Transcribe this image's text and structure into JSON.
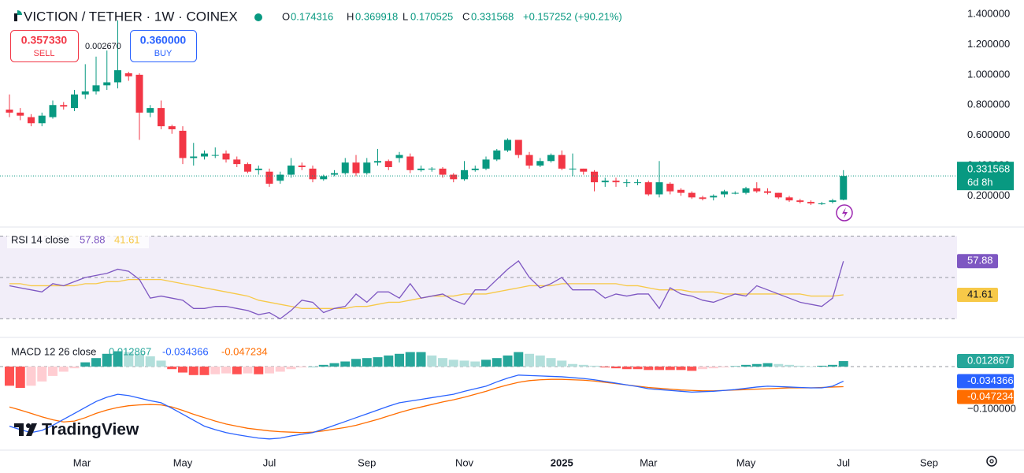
{
  "chart_data": {
    "type": "candlestick",
    "title": "VICTION / TETHER · 1W · COINEX",
    "ohlc_labels": [
      "O",
      "H",
      "L",
      "C"
    ],
    "change_label": "+0.157252 (+90.21%)",
    "sell": {
      "value": 0.35733,
      "label": "0.357330"
    },
    "sell_text": "SELL",
    "buy": {
      "value": 0.36,
      "label": "0.360000"
    },
    "buy_text": "BUY",
    "annotation": "0.002670",
    "countdown": "6d 8h",
    "brand": "TradingView",
    "up_color": "#089981",
    "down_color": "#f23645",
    "grid": false,
    "candles": {
      "open": [
        0.77,
        0.75,
        0.72,
        0.68,
        0.72,
        0.8,
        0.78,
        0.87,
        0.89,
        0.93,
        0.95,
        1.01,
        1.0,
        0.75,
        0.78,
        0.66,
        0.63,
        0.45,
        0.46,
        0.47,
        0.48,
        0.44,
        0.41,
        0.37,
        0.36,
        0.3,
        0.34,
        0.4,
        0.38,
        0.31,
        0.34,
        0.35,
        0.42,
        0.35,
        0.42,
        0.43,
        0.45,
        0.46,
        0.37,
        0.38,
        0.38,
        0.34,
        0.31,
        0.37,
        0.38,
        0.44,
        0.5,
        0.57,
        0.47,
        0.4,
        0.43,
        0.47,
        0.38,
        0.38,
        0.36,
        0.29,
        0.3,
        0.29,
        0.29,
        0.29,
        0.21,
        0.28,
        0.24,
        0.22,
        0.19,
        0.19,
        0.21,
        0.22,
        0.22,
        0.25,
        0.23,
        0.22,
        0.19,
        0.17,
        0.16,
        0.15,
        0.16,
        0.174316
      ],
      "high": [
        0.87,
        0.78,
        0.74,
        0.75,
        0.83,
        0.82,
        0.9,
        1.07,
        1.12,
        1.16,
        1.36,
        1.02,
        1.01,
        0.8,
        0.83,
        0.67,
        0.66,
        0.55,
        0.5,
        0.52,
        0.5,
        0.46,
        0.42,
        0.4,
        0.38,
        0.36,
        0.45,
        0.42,
        0.4,
        0.34,
        0.37,
        0.45,
        0.47,
        0.45,
        0.51,
        0.44,
        0.49,
        0.48,
        0.4,
        0.39,
        0.39,
        0.35,
        0.43,
        0.4,
        0.46,
        0.51,
        0.58,
        0.56,
        0.49,
        0.45,
        0.48,
        0.5,
        0.48,
        0.38,
        0.37,
        0.32,
        0.32,
        0.31,
        0.31,
        0.3,
        0.43,
        0.29,
        0.25,
        0.23,
        0.2,
        0.21,
        0.24,
        0.23,
        0.26,
        0.29,
        0.25,
        0.22,
        0.2,
        0.18,
        0.17,
        0.16,
        0.18,
        0.369918
      ],
      "low": [
        0.72,
        0.7,
        0.66,
        0.66,
        0.71,
        0.77,
        0.76,
        0.84,
        0.87,
        0.9,
        0.91,
        0.96,
        0.57,
        0.72,
        0.64,
        0.61,
        0.41,
        0.4,
        0.44,
        0.45,
        0.42,
        0.39,
        0.35,
        0.34,
        0.26,
        0.28,
        0.32,
        0.37,
        0.29,
        0.3,
        0.33,
        0.34,
        0.33,
        0.34,
        0.4,
        0.37,
        0.42,
        0.35,
        0.36,
        0.36,
        0.32,
        0.29,
        0.3,
        0.36,
        0.37,
        0.43,
        0.49,
        0.45,
        0.38,
        0.39,
        0.42,
        0.37,
        0.33,
        0.34,
        0.23,
        0.26,
        0.26,
        0.26,
        0.27,
        0.2,
        0.19,
        0.21,
        0.2,
        0.18,
        0.17,
        0.17,
        0.19,
        0.21,
        0.21,
        0.22,
        0.21,
        0.18,
        0.16,
        0.15,
        0.14,
        0.14,
        0.15,
        0.170525
      ],
      "close": [
        0.75,
        0.73,
        0.68,
        0.73,
        0.8,
        0.79,
        0.87,
        0.89,
        0.93,
        0.95,
        1.03,
        0.99,
        0.75,
        0.78,
        0.66,
        0.64,
        0.45,
        0.46,
        0.48,
        0.47,
        0.44,
        0.41,
        0.36,
        0.38,
        0.28,
        0.34,
        0.4,
        0.39,
        0.31,
        0.33,
        0.35,
        0.42,
        0.35,
        0.42,
        0.43,
        0.39,
        0.47,
        0.37,
        0.38,
        0.38,
        0.34,
        0.31,
        0.37,
        0.38,
        0.44,
        0.5,
        0.57,
        0.47,
        0.4,
        0.43,
        0.47,
        0.38,
        0.38,
        0.36,
        0.29,
        0.3,
        0.29,
        0.29,
        0.29,
        0.21,
        0.29,
        0.23,
        0.22,
        0.19,
        0.18,
        0.2,
        0.23,
        0.22,
        0.25,
        0.23,
        0.22,
        0.19,
        0.17,
        0.16,
        0.15,
        0.15,
        0.17,
        0.331568
      ]
    },
    "xlim": [
      -0.873,
      87.49
    ],
    "xticks": [
      {
        "value": 6.69,
        "label": "Mar"
      },
      {
        "value": 16.0,
        "label": "May"
      },
      {
        "value": 24.0,
        "label": "Jul"
      },
      {
        "value": 33.0,
        "label": "Sep"
      },
      {
        "value": 42.0,
        "label": "Nov"
      },
      {
        "value": 51.0,
        "label": "2025"
      },
      {
        "value": 59.0,
        "label": "Mar"
      },
      {
        "value": 68.0,
        "label": "May"
      },
      {
        "value": 77.0,
        "label": "Jul"
      },
      {
        "value": 84.9,
        "label": "Sep"
      }
    ],
    "ylim": [
      -0.006,
      1.494
    ],
    "yticks": [
      {
        "value": 0.2,
        "label": "0.200000"
      },
      {
        "value": 0.4,
        "label": "0.400000"
      },
      {
        "value": 0.6,
        "label": "0.600000"
      },
      {
        "value": 0.8,
        "label": "0.800000"
      },
      {
        "value": 1.0,
        "label": "1.000000"
      },
      {
        "value": 1.2,
        "label": "1.200000"
      },
      {
        "value": 1.4,
        "label": "1.400000"
      }
    ],
    "rsi": {
      "title": "RSI 14 close",
      "color": "#7e57c2",
      "ma_color": "#f7c948",
      "ylim": [
        21.0,
        74.4
      ],
      "levels": [
        30,
        50,
        70
      ],
      "values": [
        46,
        45,
        44,
        43,
        47,
        46,
        48,
        50,
        51,
        52,
        54,
        53,
        49,
        40,
        41,
        40,
        39,
        35,
        35,
        36,
        36,
        35,
        34,
        32,
        33,
        30,
        34,
        39,
        38,
        33,
        35,
        36,
        42,
        38,
        43,
        43,
        40,
        47,
        40,
        41,
        42,
        39,
        37,
        44,
        44,
        49,
        54,
        58,
        50,
        45,
        47,
        50,
        44,
        44,
        44,
        40,
        42,
        41,
        42,
        42,
        35,
        45,
        42,
        41,
        39,
        38,
        40,
        42,
        41,
        46,
        44,
        42,
        40,
        38,
        37,
        36,
        40,
        57.88
      ],
      "ma_values": [
        47,
        47,
        46,
        46,
        46,
        46,
        46,
        47,
        47,
        48,
        48,
        49,
        49,
        49,
        49,
        48,
        47,
        46,
        45,
        44,
        43,
        42,
        41,
        39,
        38,
        37,
        36,
        35,
        35,
        35,
        35,
        35,
        36,
        36,
        37,
        38,
        38,
        39,
        40,
        41,
        41,
        41,
        42,
        42,
        42,
        43,
        44,
        45,
        46,
        46,
        46,
        47,
        47,
        47,
        47,
        47,
        47,
        46,
        46,
        45,
        44,
        44,
        44,
        43,
        43,
        43,
        42,
        42,
        42,
        42,
        42,
        42,
        42,
        42,
        41,
        41,
        41,
        41.61
      ]
    },
    "macd": {
      "title": "MACD 12 26 close",
      "macd_color": "#2962ff",
      "signal_color": "#ff6d00",
      "hist_colors": {
        "up_strong": "#26a69a",
        "up_weak": "#b2dfdb",
        "down_strong": "#ff5252",
        "down_weak": "#ffcdd2"
      },
      "ylim": [
        -0.1944,
        0.0685
      ],
      "yticks": [
        {
          "value": -0.1,
          "label": "−0.100000"
        }
      ],
      "hist": [
        -0.045,
        -0.05,
        -0.045,
        -0.035,
        -0.022,
        -0.012,
        -0.004,
        0.01,
        0.02,
        0.03,
        0.036,
        0.034,
        0.03,
        0.024,
        0.014,
        -0.006,
        -0.014,
        -0.02,
        -0.02,
        -0.018,
        -0.016,
        -0.018,
        -0.016,
        -0.018,
        -0.016,
        -0.012,
        -0.006,
        -0.002,
        0.0,
        0.004,
        0.008,
        0.012,
        0.018,
        0.02,
        0.022,
        0.026,
        0.03,
        0.034,
        0.034,
        0.026,
        0.02,
        0.016,
        0.014,
        0.012,
        0.016,
        0.02,
        0.026,
        0.034,
        0.03,
        0.026,
        0.02,
        0.014,
        0.006,
        0.004,
        0.002,
        -0.002,
        -0.004,
        -0.006,
        -0.006,
        -0.008,
        -0.008,
        -0.008,
        -0.008,
        -0.01,
        -0.006,
        -0.004,
        -0.002,
        0.001,
        0.004,
        0.006,
        0.008,
        0.006,
        0.004,
        0.002,
        0.0,
        0.002,
        0.004,
        0.012867
      ],
      "macd": [
        -0.14,
        -0.148,
        -0.155,
        -0.15,
        -0.138,
        -0.124,
        -0.11,
        -0.096,
        -0.082,
        -0.072,
        -0.065,
        -0.068,
        -0.074,
        -0.08,
        -0.085,
        -0.098,
        -0.112,
        -0.126,
        -0.14,
        -0.148,
        -0.155,
        -0.16,
        -0.164,
        -0.168,
        -0.17,
        -0.168,
        -0.163,
        -0.159,
        -0.155,
        -0.147,
        -0.138,
        -0.129,
        -0.12,
        -0.111,
        -0.102,
        -0.093,
        -0.085,
        -0.081,
        -0.077,
        -0.073,
        -0.069,
        -0.065,
        -0.058,
        -0.052,
        -0.046,
        -0.036,
        -0.027,
        -0.02,
        -0.021,
        -0.022,
        -0.023,
        -0.024,
        -0.026,
        -0.028,
        -0.031,
        -0.035,
        -0.039,
        -0.043,
        -0.047,
        -0.052,
        -0.054,
        -0.056,
        -0.058,
        -0.06,
        -0.059,
        -0.058,
        -0.056,
        -0.054,
        -0.051,
        -0.048,
        -0.046,
        -0.047,
        -0.048,
        -0.049,
        -0.05,
        -0.05,
        -0.046,
        -0.034366
      ],
      "signal": [
        -0.095,
        -0.102,
        -0.11,
        -0.118,
        -0.125,
        -0.13,
        -0.128,
        -0.12,
        -0.11,
        -0.102,
        -0.096,
        -0.092,
        -0.09,
        -0.089,
        -0.09,
        -0.095,
        -0.103,
        -0.112,
        -0.12,
        -0.128,
        -0.135,
        -0.14,
        -0.145,
        -0.148,
        -0.151,
        -0.153,
        -0.154,
        -0.155,
        -0.154,
        -0.151,
        -0.147,
        -0.143,
        -0.138,
        -0.131,
        -0.124,
        -0.116,
        -0.108,
        -0.101,
        -0.095,
        -0.089,
        -0.083,
        -0.078,
        -0.072,
        -0.065,
        -0.058,
        -0.05,
        -0.043,
        -0.037,
        -0.033,
        -0.031,
        -0.03,
        -0.03,
        -0.031,
        -0.032,
        -0.034,
        -0.037,
        -0.04,
        -0.043,
        -0.046,
        -0.049,
        -0.051,
        -0.053,
        -0.055,
        -0.056,
        -0.057,
        -0.057,
        -0.056,
        -0.055,
        -0.054,
        -0.053,
        -0.052,
        -0.051,
        -0.05,
        -0.05,
        -0.05,
        -0.049,
        -0.048,
        -0.047234
      ]
    }
  }
}
